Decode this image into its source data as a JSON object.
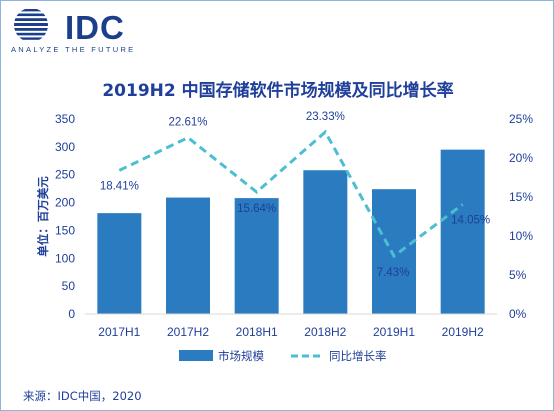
{
  "brand": {
    "logo_text": "IDC",
    "tagline": "ANALYZE THE FUTURE",
    "logo_color": "#1b3f8a"
  },
  "title": "2019H2 中国存储软件市场规模及同比增长率",
  "source": "来源：IDC中国，2020",
  "colors": {
    "bar": "#2a7bbf",
    "line": "#4bbfd2",
    "text": "#1f3f9a"
  },
  "chart_data": {
    "type": "bar",
    "categories": [
      "2017H1",
      "2017H2",
      "2018H1",
      "2018H2",
      "2019H1",
      "2019H2"
    ],
    "series": [
      {
        "name": "市场规模",
        "type": "bar",
        "axis": "left",
        "values": [
          181,
          209,
          208,
          258,
          224,
          295
        ]
      },
      {
        "name": "同比增长率",
        "type": "line",
        "axis": "right",
        "style": "dashed",
        "values": [
          18.41,
          22.61,
          15.64,
          23.33,
          7.43,
          14.05
        ],
        "labels": [
          "18.41%",
          "22.61%",
          "15.64%",
          "23.33%",
          "7.43%",
          "14.05%"
        ]
      }
    ],
    "ylabel": "单位：百万美元",
    "ylim": [
      0,
      350
    ],
    "yticks": [
      "0",
      "50",
      "100",
      "150",
      "200",
      "250",
      "300",
      "350"
    ],
    "y2lim": [
      0,
      25
    ],
    "y2ticks": [
      "0%",
      "5%",
      "10%",
      "15%",
      "20%",
      "25%"
    ],
    "grid": false,
    "legend": "bottom"
  }
}
